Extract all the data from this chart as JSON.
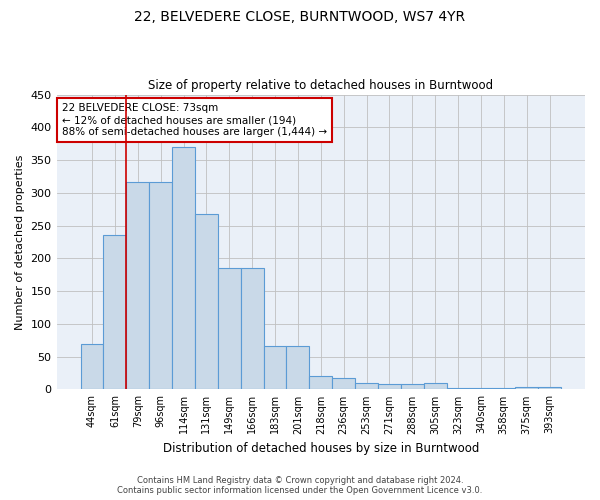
{
  "title": "22, BELVEDERE CLOSE, BURNTWOOD, WS7 4YR",
  "subtitle": "Size of property relative to detached houses in Burntwood",
  "xlabel": "Distribution of detached houses by size in Burntwood",
  "ylabel": "Number of detached properties",
  "categories": [
    "44sqm",
    "61sqm",
    "79sqm",
    "96sqm",
    "114sqm",
    "131sqm",
    "149sqm",
    "166sqm",
    "183sqm",
    "201sqm",
    "218sqm",
    "236sqm",
    "253sqm",
    "271sqm",
    "288sqm",
    "305sqm",
    "323sqm",
    "340sqm",
    "358sqm",
    "375sqm",
    "393sqm"
  ],
  "values": [
    70,
    236,
    316,
    317,
    370,
    268,
    185,
    185,
    66,
    66,
    20,
    18,
    10,
    8,
    9,
    10,
    2,
    2,
    2,
    3,
    4
  ],
  "bar_color": "#c9d9e8",
  "bar_edge_color": "#5b9bd5",
  "vline_x": 1.5,
  "vline_color": "#cc0000",
  "annotation_line1": "22 BELVEDERE CLOSE: 73sqm",
  "annotation_line2": "← 12% of detached houses are smaller (194)",
  "annotation_line3": "88% of semi-detached houses are larger (1,444) →",
  "annotation_box_color": "#cc0000",
  "ylim": [
    0,
    450
  ],
  "yticks": [
    0,
    50,
    100,
    150,
    200,
    250,
    300,
    350,
    400,
    450
  ],
  "grid_color": "#c0c0c0",
  "bg_color": "#eaf0f8",
  "footer_line1": "Contains HM Land Registry data © Crown copyright and database right 2024.",
  "footer_line2": "Contains public sector information licensed under the Open Government Licence v3.0."
}
